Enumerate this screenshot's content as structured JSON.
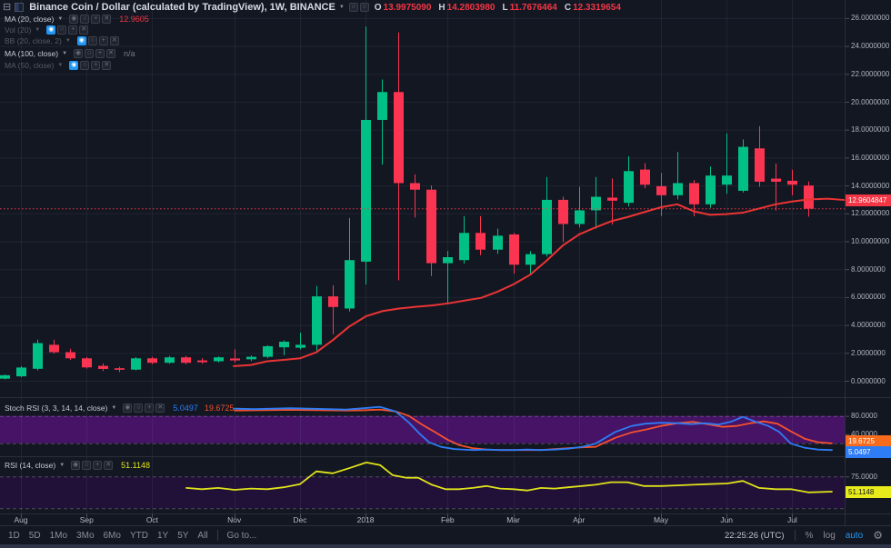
{
  "header": {
    "menu_icon": "⊟",
    "title": "Binance Coin / Dollar (calculated by TradingView), 1W, BINANCE",
    "ohlc": [
      {
        "k": "O",
        "v": "13.9975090"
      },
      {
        "k": "H",
        "v": "14.2803980"
      },
      {
        "k": "L",
        "v": "11.7676464"
      },
      {
        "k": "C",
        "v": "12.3319654"
      }
    ]
  },
  "indicators": [
    {
      "label": "MA (20, close)",
      "dim": false,
      "eye_active": false,
      "value": "12.9605",
      "value_color": "#f23645"
    },
    {
      "label": "Vol (20)",
      "dim": true,
      "eye_active": true,
      "value": "",
      "value_color": ""
    },
    {
      "label": "BB (20, close, 2)",
      "dim": true,
      "eye_active": true,
      "value": "",
      "value_color": ""
    },
    {
      "label": "MA (100, close)",
      "dim": false,
      "eye_active": false,
      "value": "n/a",
      "value_color": "#787b86"
    },
    {
      "label": "MA (50, close)",
      "dim": true,
      "eye_active": true,
      "value": "",
      "value_color": ""
    }
  ],
  "panels": {
    "stoch": {
      "label": "Stoch RSI (3, 3, 14, 14, close)",
      "k_value": "5.0497",
      "d_value": "19.6725",
      "axis_labels": [
        {
          "text": "80.0000",
          "v": 80
        },
        {
          "text": "40.0000",
          "v": 40
        }
      ],
      "badges": [
        {
          "text": "19.6725",
          "bg": "#f76b1c",
          "fg": "#ffffff"
        },
        {
          "text": "5.0497",
          "bg": "#2e7cf6",
          "fg": "#ffffff"
        }
      ]
    },
    "rsi": {
      "label": "RSI (14, close)",
      "value": "51.1148",
      "axis_labels": [
        {
          "text": "75.0000",
          "v": 75
        }
      ],
      "badge": {
        "text": "51.1148",
        "bg": "#e7ea1b",
        "fg": "#131722"
      }
    }
  },
  "price_axis": {
    "labels": [
      "26.0000000",
      "24.0000000",
      "22.0000000",
      "20.0000000",
      "18.0000000",
      "16.0000000",
      "14.0000000",
      "12.0000000",
      "10.0000000",
      "8.0000000",
      "6.0000000",
      "4.0000000",
      "2.0000000",
      "0.0000000"
    ],
    "badge": {
      "text": "12.9604847",
      "bg": "#f23645",
      "fg": "#ffffff",
      "p": 12.9604847
    }
  },
  "time_axis": {
    "months": [
      {
        "label": "Aug",
        "i": 1
      },
      {
        "label": "Sep",
        "i": 5
      },
      {
        "label": "Oct",
        "i": 9
      },
      {
        "label": "Nov",
        "i": 14
      },
      {
        "label": "Dec",
        "i": 18
      },
      {
        "label": "2018",
        "i": 22
      },
      {
        "label": "Feb",
        "i": 27
      },
      {
        "label": "Mar",
        "i": 31
      },
      {
        "label": "Apr",
        "i": 35
      },
      {
        "label": "May",
        "i": 40
      },
      {
        "label": "Jun",
        "i": 44
      },
      {
        "label": "Jul",
        "i": 48
      }
    ]
  },
  "toolbar": {
    "ranges": [
      "1D",
      "5D",
      "1Mo",
      "3Mo",
      "6Mo",
      "YTD",
      "1Y",
      "5Y",
      "All"
    ],
    "goto": "Go to...",
    "clock": "22:25:26 (UTC)",
    "percent": "%",
    "log": "log",
    "auto": "auto"
  },
  "chart_data": {
    "type": "candlestick",
    "title": "Binance Coin / Dollar, 1W, BINANCE",
    "price_range": [
      0,
      26
    ],
    "stoch_range": [
      0,
      100
    ],
    "rsi_range": [
      0,
      100
    ],
    "stoch_bands": [
      20,
      80
    ],
    "rsi_bands": [
      25,
      75
    ],
    "last_price": 12.3319654,
    "ma20_last": 12.9604847,
    "candles": [
      [
        0.15,
        0.45,
        0.1,
        0.4
      ],
      [
        0.32,
        1.05,
        0.25,
        0.95
      ],
      [
        0.86,
        2.95,
        0.75,
        2.7
      ],
      [
        2.58,
        2.95,
        1.95,
        2.05
      ],
      [
        2.05,
        2.3,
        1.5,
        1.61
      ],
      [
        1.61,
        1.7,
        0.88,
        0.96
      ],
      [
        1.07,
        1.25,
        0.7,
        0.85
      ],
      [
        0.9,
        1.0,
        0.62,
        0.79
      ],
      [
        0.8,
        1.7,
        0.75,
        1.61
      ],
      [
        1.61,
        1.72,
        1.18,
        1.29
      ],
      [
        1.29,
        1.78,
        1.22,
        1.68
      ],
      [
        1.68,
        1.78,
        1.18,
        1.29
      ],
      [
        1.46,
        1.62,
        1.22,
        1.33
      ],
      [
        1.4,
        1.75,
        1.32,
        1.68
      ],
      [
        1.6,
        2.26,
        1.3,
        1.46
      ],
      [
        1.54,
        1.82,
        1.42,
        1.72
      ],
      [
        1.72,
        2.55,
        1.62,
        2.48
      ],
      [
        2.4,
        2.9,
        1.83,
        2.8
      ],
      [
        2.37,
        3.45,
        2.25,
        2.58
      ],
      [
        2.58,
        6.8,
        2.16,
        6.05
      ],
      [
        6.05,
        6.85,
        3.34,
        5.29
      ],
      [
        5.18,
        11.67,
        4.97,
        8.65
      ],
      [
        8.54,
        25.4,
        6.9,
        18.7
      ],
      [
        18.7,
        21.6,
        15.5,
        20.7
      ],
      [
        20.7,
        24.97,
        7.2,
        14.17
      ],
      [
        14.17,
        14.8,
        11.7,
        13.7
      ],
      [
        13.7,
        14.0,
        7.5,
        8.43
      ],
      [
        8.43,
        9.3,
        5.5,
        8.86
      ],
      [
        8.65,
        11.8,
        8.4,
        10.6
      ],
      [
        10.6,
        11.8,
        9.0,
        9.4
      ],
      [
        9.4,
        10.9,
        9.1,
        10.4
      ],
      [
        10.49,
        10.6,
        7.67,
        8.32
      ],
      [
        8.32,
        9.3,
        7.56,
        9.08
      ],
      [
        9.08,
        14.6,
        8.9,
        12.97
      ],
      [
        12.97,
        13.2,
        9.95,
        11.24
      ],
      [
        11.24,
        13.9,
        11.0,
        12.22
      ],
      [
        12.22,
        14.6,
        10.9,
        13.19
      ],
      [
        13.13,
        14.5,
        11.2,
        12.91
      ],
      [
        12.76,
        16.1,
        12.5,
        15.03
      ],
      [
        15.14,
        15.6,
        13.8,
        14.06
      ],
      [
        13.95,
        14.9,
        11.8,
        13.3
      ],
      [
        13.3,
        16.4,
        13.0,
        14.17
      ],
      [
        14.17,
        14.4,
        11.79,
        12.65
      ],
      [
        12.65,
        15.36,
        12.4,
        14.71
      ],
      [
        14.06,
        17.74,
        13.4,
        14.71
      ],
      [
        13.62,
        17.3,
        13.5,
        16.77
      ],
      [
        16.66,
        18.25,
        13.9,
        14.27
      ],
      [
        14.49,
        15.57,
        12.2,
        14.27
      ],
      [
        14.34,
        15.14,
        13.3,
        14.06
      ],
      [
        13.9975,
        14.2804,
        11.7676,
        12.332
      ]
    ],
    "ma20": [
      [
        257,
        1.05
      ],
      [
        276,
        1.13
      ],
      [
        294,
        1.4
      ],
      [
        312,
        1.5
      ],
      [
        330,
        1.61
      ],
      [
        348,
        2.05
      ],
      [
        366,
        2.91
      ],
      [
        384,
        3.88
      ],
      [
        403,
        4.64
      ],
      [
        421,
        5.0
      ],
      [
        439,
        5.18
      ],
      [
        457,
        5.3
      ],
      [
        475,
        5.4
      ],
      [
        493,
        5.55
      ],
      [
        511,
        5.75
      ],
      [
        529,
        5.94
      ],
      [
        547,
        6.38
      ],
      [
        565,
        6.92
      ],
      [
        583,
        7.6
      ],
      [
        601,
        8.6
      ],
      [
        619,
        9.7
      ],
      [
        637,
        10.49
      ],
      [
        655,
        11.0
      ],
      [
        673,
        11.45
      ],
      [
        691,
        11.75
      ],
      [
        709,
        12.1
      ],
      [
        727,
        12.44
      ],
      [
        745,
        12.65
      ],
      [
        763,
        12.15
      ],
      [
        781,
        11.9
      ],
      [
        799,
        11.95
      ],
      [
        817,
        12.05
      ],
      [
        835,
        12.35
      ],
      [
        853,
        12.65
      ],
      [
        871,
        12.85
      ],
      [
        889,
        13.0
      ],
      [
        910,
        13.05
      ],
      [
        929,
        12.96
      ]
    ],
    "stoch_k": [
      [
        258,
        96
      ],
      [
        280,
        95
      ],
      [
        300,
        96
      ],
      [
        320,
        97
      ],
      [
        340,
        96
      ],
      [
        360,
        95
      ],
      [
        380,
        94
      ],
      [
        400,
        97
      ],
      [
        418,
        100
      ],
      [
        435,
        90
      ],
      [
        450,
        65
      ],
      [
        462,
        40
      ],
      [
        472,
        22
      ],
      [
        485,
        12
      ],
      [
        500,
        7
      ],
      [
        520,
        5
      ],
      [
        535,
        6
      ],
      [
        550,
        5
      ],
      [
        565,
        5
      ],
      [
        580,
        6
      ],
      [
        595,
        5
      ],
      [
        610,
        6
      ],
      [
        625,
        8
      ],
      [
        640,
        12
      ],
      [
        655,
        19
      ],
      [
        677,
        45
      ],
      [
        695,
        58
      ],
      [
        710,
        63
      ],
      [
        727,
        65
      ],
      [
        745,
        64
      ],
      [
        760,
        62
      ],
      [
        775,
        64
      ],
      [
        790,
        61
      ],
      [
        805,
        68
      ],
      [
        817,
        78
      ],
      [
        830,
        68
      ],
      [
        845,
        58
      ],
      [
        857,
        45
      ],
      [
        870,
        19
      ],
      [
        885,
        10
      ],
      [
        900,
        6
      ],
      [
        915,
        5.05
      ]
    ],
    "stoch_d": [
      [
        258,
        92
      ],
      [
        280,
        92.5
      ],
      [
        300,
        93
      ],
      [
        320,
        93.5
      ],
      [
        340,
        93
      ],
      [
        360,
        92.5
      ],
      [
        380,
        92
      ],
      [
        400,
        92.5
      ],
      [
        418,
        94
      ],
      [
        435,
        90
      ],
      [
        450,
        80
      ],
      [
        465,
        60
      ],
      [
        478,
        45
      ],
      [
        492,
        28
      ],
      [
        505,
        16
      ],
      [
        520,
        9
      ],
      [
        535,
        6
      ],
      [
        550,
        5
      ],
      [
        565,
        5
      ],
      [
        580,
        5
      ],
      [
        595,
        5
      ],
      [
        610,
        7
      ],
      [
        625,
        9
      ],
      [
        640,
        11
      ],
      [
        655,
        12
      ],
      [
        677,
        32
      ],
      [
        695,
        44
      ],
      [
        710,
        50
      ],
      [
        727,
        58
      ],
      [
        745,
        64
      ],
      [
        762,
        67
      ],
      [
        778,
        62
      ],
      [
        795,
        56
      ],
      [
        810,
        58
      ],
      [
        825,
        64
      ],
      [
        840,
        68
      ],
      [
        855,
        63
      ],
      [
        870,
        46
      ],
      [
        885,
        30
      ],
      [
        900,
        22
      ],
      [
        915,
        19.67
      ]
    ],
    "rsi": [
      [
        205,
        57
      ],
      [
        222,
        55
      ],
      [
        240,
        57
      ],
      [
        258,
        54
      ],
      [
        276,
        56
      ],
      [
        294,
        55
      ],
      [
        312,
        58
      ],
      [
        330,
        63
      ],
      [
        348,
        83
      ],
      [
        366,
        80
      ],
      [
        384,
        88
      ],
      [
        403,
        97
      ],
      [
        418,
        93
      ],
      [
        432,
        77
      ],
      [
        447,
        73
      ],
      [
        460,
        73
      ],
      [
        475,
        62
      ],
      [
        490,
        55
      ],
      [
        505,
        55
      ],
      [
        520,
        57
      ],
      [
        535,
        60
      ],
      [
        550,
        56
      ],
      [
        565,
        55
      ],
      [
        580,
        53
      ],
      [
        595,
        57
      ],
      [
        610,
        56
      ],
      [
        625,
        58
      ],
      [
        640,
        60
      ],
      [
        655,
        62
      ],
      [
        672,
        66
      ],
      [
        690,
        66
      ],
      [
        708,
        60
      ],
      [
        727,
        60
      ],
      [
        745,
        61
      ],
      [
        762,
        62
      ],
      [
        780,
        63
      ],
      [
        800,
        64
      ],
      [
        817,
        68
      ],
      [
        835,
        57
      ],
      [
        853,
        55
      ],
      [
        870,
        55
      ],
      [
        889,
        50
      ],
      [
        915,
        51.11
      ]
    ],
    "colors": {
      "up": "#00c085",
      "down": "#fa3451",
      "ma": "#eb3434",
      "k": "#2e7cf6",
      "d": "#f4512c",
      "rsi": "#dfe31a",
      "last_price_line": "#f23645",
      "stoch_band": "#461367",
      "rsi_band": "#211038"
    }
  }
}
